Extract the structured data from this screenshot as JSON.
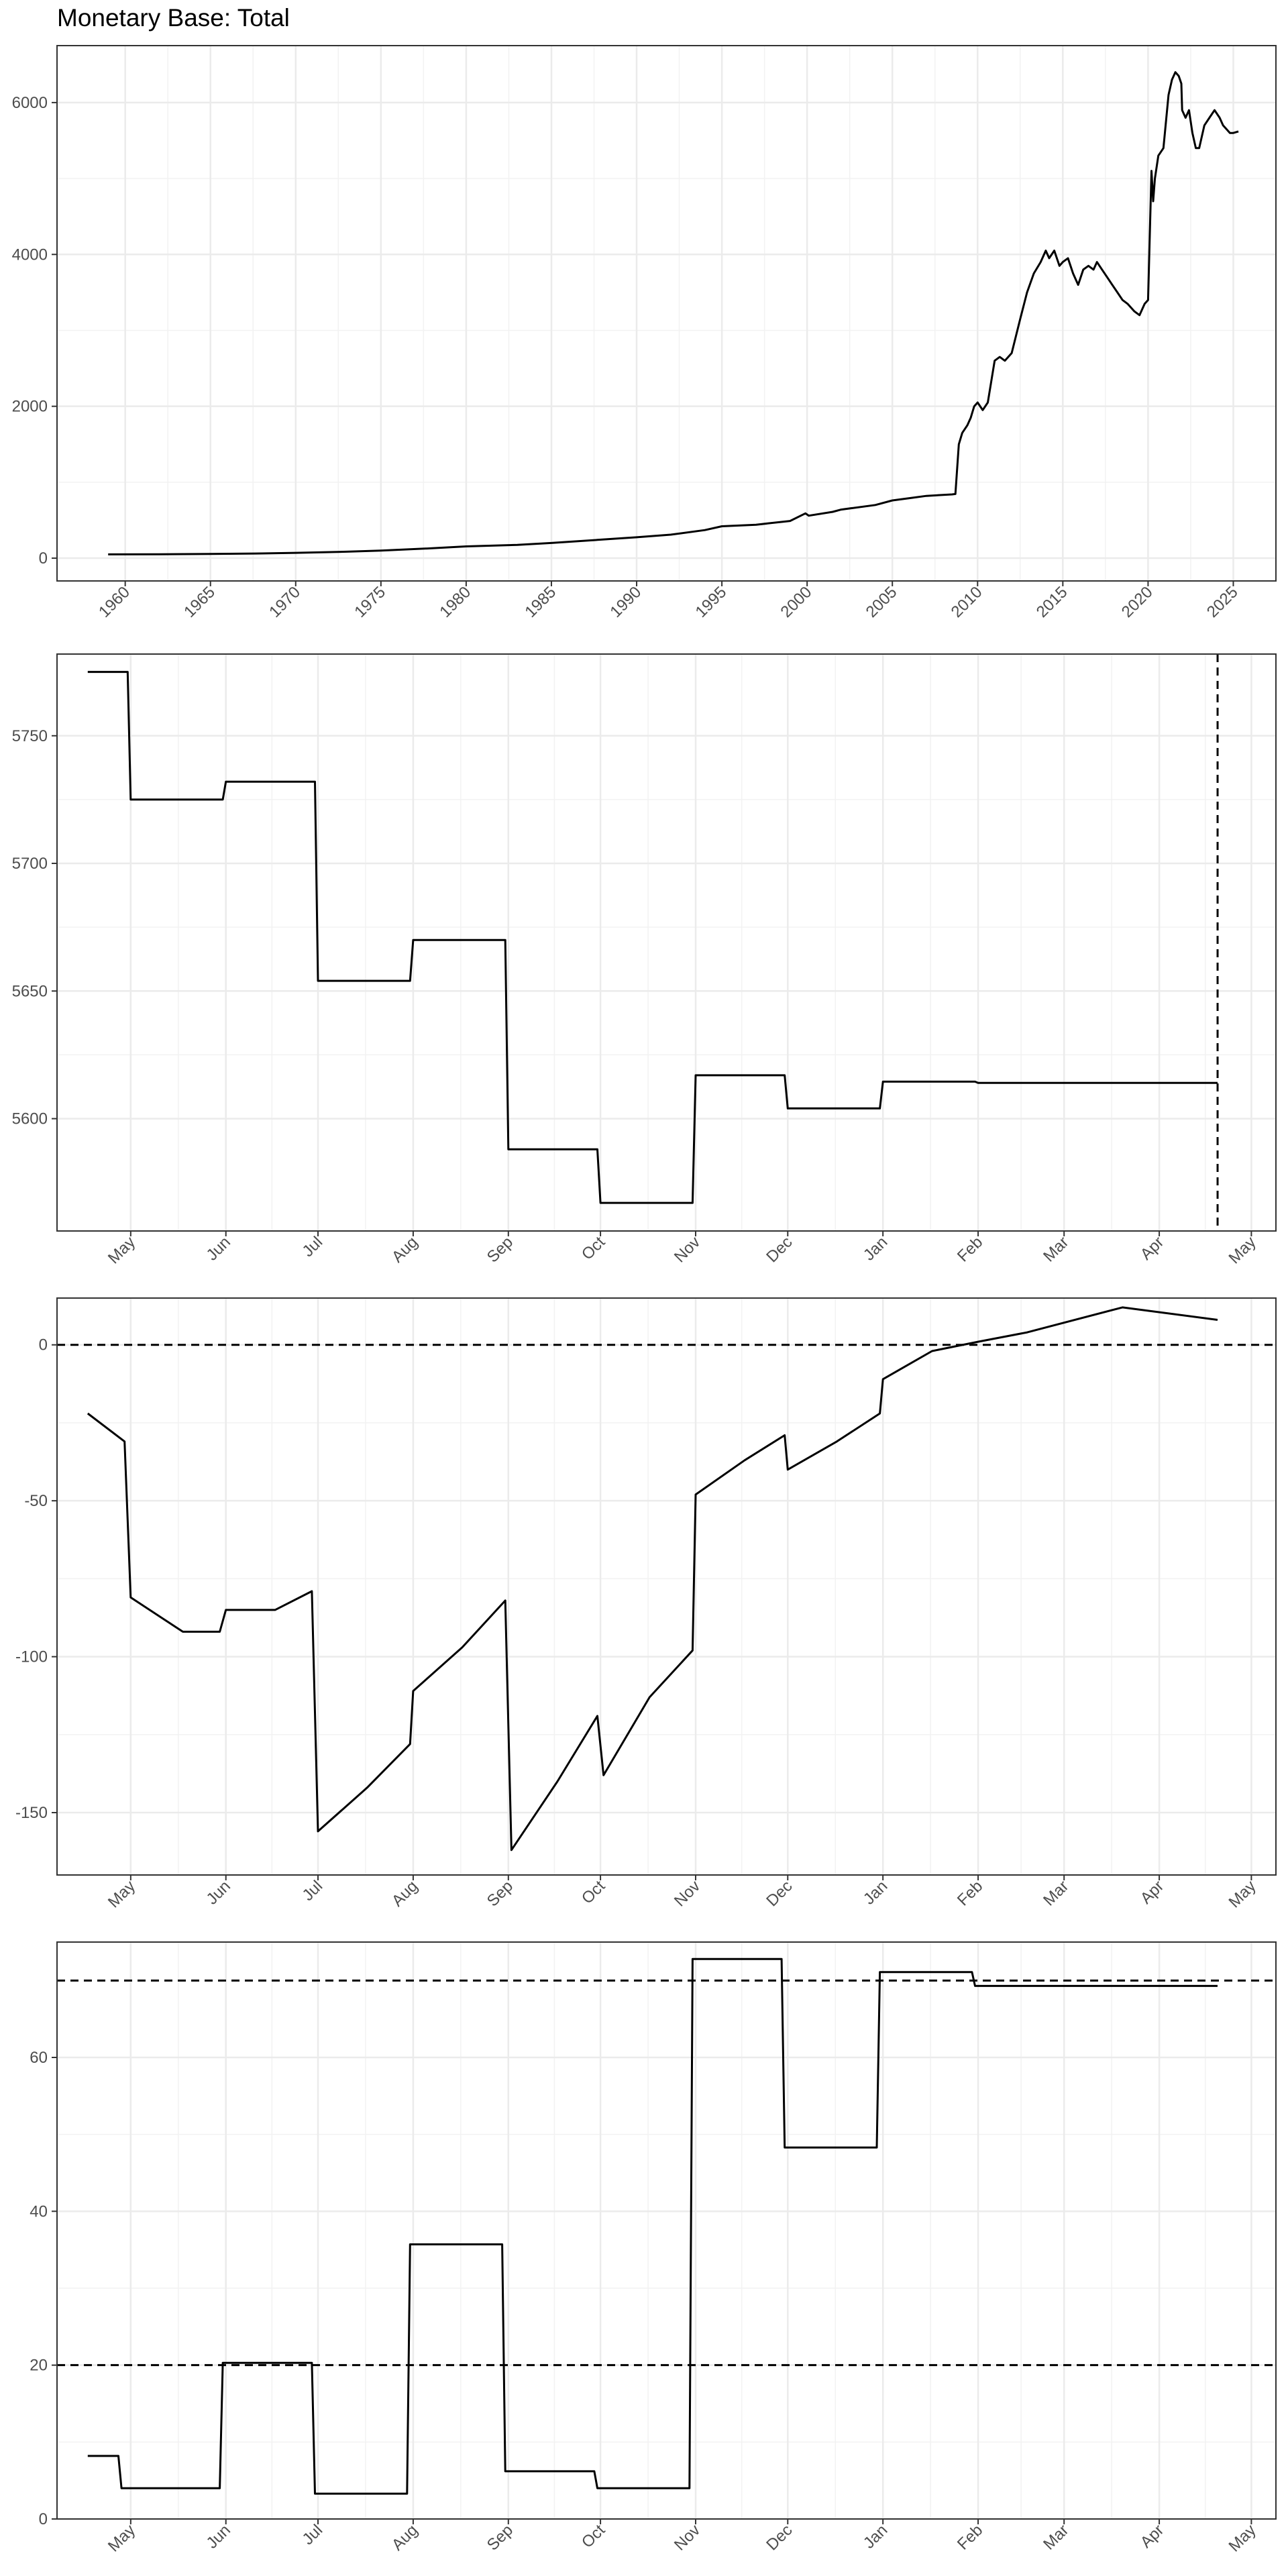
{
  "title": "Monetary Base: Total",
  "chart_data": [
    {
      "type": "line",
      "x_axis": "year",
      "xlim": [
        1956,
        2027.5
      ],
      "ylim": [
        -300,
        6750
      ],
      "x_ticks": [
        1960,
        1965,
        1970,
        1975,
        1980,
        1985,
        1990,
        1995,
        2000,
        2005,
        2010,
        2015,
        2020,
        2025
      ],
      "x_tick_labels": [
        "1960",
        "1965",
        "1970",
        "1975",
        "1980",
        "1985",
        "1990",
        "1995",
        "2000",
        "2005",
        "2010",
        "2015",
        "2020",
        "2025"
      ],
      "y_ticks": [
        0,
        2000,
        4000,
        6000
      ],
      "y_tick_labels": [
        "0",
        "2000",
        "4000",
        "6000"
      ],
      "grid": true,
      "series": [
        {
          "x": [
            1959.0,
            1962.0,
            1965.0,
            1968.0,
            1970.0,
            1973.0,
            1975.0,
            1978.0,
            1980.0,
            1983.0,
            1985.0,
            1988.0,
            1990.0,
            1992.0,
            1994.0,
            1995.0,
            1997.0,
            1999.0,
            1999.9,
            2000.1,
            2001.5,
            2002.0,
            2004.0,
            2005.0,
            2006.0,
            2007.0,
            2008.5,
            2008.7,
            2008.9,
            2009.1,
            2009.4,
            2009.6,
            2009.8,
            2010.0,
            2010.3,
            2010.6,
            2011.0,
            2011.3,
            2011.6,
            2012.0,
            2012.5,
            2012.9,
            2013.3,
            2013.7,
            2014.0,
            2014.2,
            2014.5,
            2014.8,
            2015.0,
            2015.3,
            2015.6,
            2015.9,
            2016.2,
            2016.5,
            2016.8,
            2017.0,
            2017.3,
            2017.6,
            2017.9,
            2018.2,
            2018.5,
            2018.8,
            2019.2,
            2019.5,
            2019.8,
            2020.0,
            2020.2,
            2020.3,
            2020.4,
            2020.6,
            2020.9,
            2021.2,
            2021.4,
            2021.6,
            2021.8,
            2021.95,
            2022.0,
            2022.2,
            2022.4,
            2022.6,
            2022.8,
            2023.0,
            2023.3,
            2023.6,
            2023.9,
            2024.2,
            2024.4,
            2024.6,
            2024.8,
            2025.0,
            2025.3
          ],
          "y": [
            50,
            52,
            55,
            62,
            70,
            85,
            100,
            130,
            155,
            175,
            200,
            245,
            275,
            310,
            370,
            420,
            440,
            490,
            590,
            560,
            610,
            640,
            700,
            760,
            790,
            820,
            840,
            845,
            1500,
            1650,
            1750,
            1850,
            2000,
            2050,
            1950,
            2050,
            2600,
            2650,
            2600,
            2700,
            3150,
            3500,
            3750,
            3900,
            4050,
            3950,
            4050,
            3850,
            3900,
            3950,
            3750,
            3600,
            3800,
            3850,
            3800,
            3900,
            3800,
            3700,
            3600,
            3500,
            3400,
            3350,
            3250,
            3200,
            3350,
            3400,
            5100,
            4700,
            5000,
            5300,
            5400,
            6100,
            6300,
            6400,
            6350,
            6250,
            5900,
            5800,
            5900,
            5600,
            5400,
            5400,
            5700,
            5800,
            5900,
            5800,
            5700,
            5650,
            5600,
            5600,
            5620
          ]
        }
      ]
    },
    {
      "type": "line",
      "x_axis": "date",
      "xlim": [
        "2024-04-07",
        "2025-05-09"
      ],
      "ylim": [
        5556,
        5782
      ],
      "x_ticks": [
        "2024-05-01",
        "2024-06-01",
        "2024-07-01",
        "2024-08-01",
        "2024-09-01",
        "2024-10-01",
        "2024-11-01",
        "2024-12-01",
        "2025-01-01",
        "2025-02-01",
        "2025-03-01",
        "2025-04-01",
        "2025-05-01"
      ],
      "x_tick_labels": [
        "May",
        "Jun",
        "Jul",
        "Aug",
        "Sep",
        "Oct",
        "Nov",
        "Dec",
        "Jan",
        "Feb",
        "Mar",
        "Apr",
        "May"
      ],
      "y_ticks": [
        5600,
        5650,
        5700,
        5750
      ],
      "y_tick_labels": [
        "5600",
        "5650",
        "5700",
        "5750"
      ],
      "grid": true,
      "reference_lines": [
        {
          "orientation": "vertical",
          "value": "2025-04-20",
          "style": "dashed"
        }
      ],
      "series": [
        {
          "x": [
            "2024-04-17",
            "2024-04-30",
            "2024-05-01",
            "2024-05-31",
            "2024-06-01",
            "2024-06-30",
            "2024-07-01",
            "2024-07-31",
            "2024-08-01",
            "2024-08-31",
            "2024-09-01",
            "2024-09-30",
            "2024-10-01",
            "2024-10-31",
            "2024-11-01",
            "2024-11-30",
            "2024-12-01",
            "2024-12-31",
            "2025-01-01",
            "2025-01-31",
            "2025-02-01",
            "2025-04-20"
          ],
          "y": [
            5775,
            5775,
            5725,
            5725,
            5732,
            5732,
            5654,
            5654,
            5670,
            5670,
            5588,
            5588,
            5567,
            5567,
            5617,
            5617,
            5604,
            5604,
            5614.5,
            5614.5,
            5614,
            5614
          ]
        }
      ]
    },
    {
      "type": "line",
      "x_axis": "date",
      "xlim": [
        "2024-04-07",
        "2025-05-09"
      ],
      "ylim": [
        -170,
        15
      ],
      "x_ticks": [
        "2024-05-01",
        "2024-06-01",
        "2024-07-01",
        "2024-08-01",
        "2024-09-01",
        "2024-10-01",
        "2024-11-01",
        "2024-12-01",
        "2025-01-01",
        "2025-02-01",
        "2025-03-01",
        "2025-04-01",
        "2025-05-01"
      ],
      "x_tick_labels": [
        "May",
        "Jun",
        "Jul",
        "Aug",
        "Sep",
        "Oct",
        "Nov",
        "Dec",
        "Jan",
        "Feb",
        "Mar",
        "Apr",
        "May"
      ],
      "y_ticks": [
        -150,
        -100,
        -50,
        0
      ],
      "y_tick_labels": [
        "-150",
        "-100",
        "-50",
        "0"
      ],
      "grid": true,
      "reference_lines": [
        {
          "orientation": "horizontal",
          "value": 0,
          "style": "dashed"
        }
      ],
      "series": [
        {
          "x": [
            "2024-04-17",
            "2024-04-29",
            "2024-05-01",
            "2024-05-18",
            "2024-05-30",
            "2024-06-01",
            "2024-06-17",
            "2024-06-29",
            "2024-07-01",
            "2024-07-17",
            "2024-07-31",
            "2024-08-01",
            "2024-08-17",
            "2024-08-31",
            "2024-09-02",
            "2024-09-17",
            "2024-09-30",
            "2024-10-02",
            "2024-10-17",
            "2024-10-31",
            "2024-11-01",
            "2024-11-17",
            "2024-11-30",
            "2024-12-01",
            "2024-12-17",
            "2024-12-31",
            "2025-01-01",
            "2025-01-17",
            "2025-02-01",
            "2025-02-17",
            "2025-03-20",
            "2025-04-20"
          ],
          "y": [
            -22,
            -31,
            -81,
            -92,
            -92,
            -85,
            -85,
            -79,
            -156,
            -142,
            -128,
            -111,
            -97,
            -82,
            -162,
            -140,
            -119,
            -138,
            -113,
            -98,
            -48,
            -37,
            -29,
            -40,
            -31,
            -22,
            -11,
            -2,
            1,
            4,
            12,
            8
          ]
        }
      ]
    },
    {
      "type": "line",
      "x_axis": "date",
      "xlim": [
        "2024-04-07",
        "2025-05-09"
      ],
      "ylim": [
        0,
        75
      ],
      "x_ticks": [
        "2024-05-01",
        "2024-06-01",
        "2024-07-01",
        "2024-08-01",
        "2024-09-01",
        "2024-10-01",
        "2024-11-01",
        "2024-12-01",
        "2025-01-01",
        "2025-02-01",
        "2025-03-01",
        "2025-04-01",
        "2025-05-01"
      ],
      "x_tick_labels": [
        "May",
        "Jun",
        "Jul",
        "Aug",
        "Sep",
        "Oct",
        "Nov",
        "Dec",
        "Jan",
        "Feb",
        "Mar",
        "Apr",
        "May"
      ],
      "y_ticks": [
        0,
        20,
        40,
        60
      ],
      "y_tick_labels": [
        "0",
        "20",
        "40",
        "60"
      ],
      "grid": true,
      "reference_lines": [
        {
          "orientation": "horizontal",
          "value": 20,
          "style": "dashed"
        },
        {
          "orientation": "horizontal",
          "value": 70,
          "style": "dashed"
        }
      ],
      "series": [
        {
          "x": [
            "2024-04-17",
            "2024-04-27",
            "2024-04-28",
            "2024-05-30",
            "2024-05-31",
            "2024-06-29",
            "2024-06-30",
            "2024-07-30",
            "2024-07-31",
            "2024-08-30",
            "2024-08-31",
            "2024-09-29",
            "2024-09-30",
            "2024-10-30",
            "2024-10-31",
            "2024-11-29",
            "2024-11-30",
            "2024-12-30",
            "2024-12-31",
            "2025-01-30",
            "2025-01-31",
            "2025-04-20"
          ],
          "y": [
            8.2,
            8.2,
            4.0,
            4.0,
            20.3,
            20.3,
            3.3,
            3.3,
            35.7,
            35.7,
            6.2,
            6.2,
            4.0,
            4.0,
            72.8,
            72.8,
            48.3,
            48.3,
            71.1,
            71.1,
            69.3,
            69.3
          ]
        }
      ]
    }
  ]
}
